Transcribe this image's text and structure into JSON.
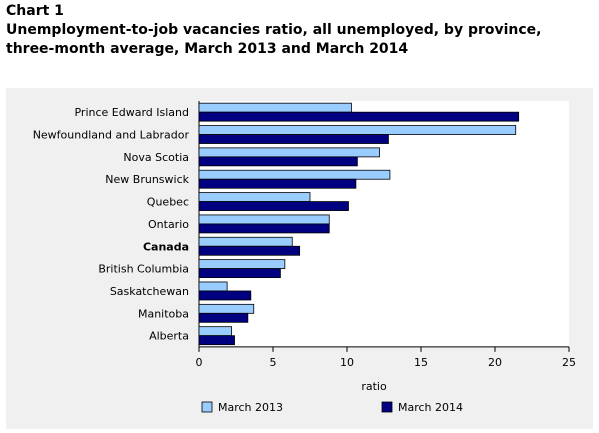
{
  "chart_label": "Chart 1",
  "chart_title": "Unemployment-to-job vacancies ratio, all unemployed, by province, three-month average, March 2013 and March 2014",
  "chart_data": {
    "type": "bar",
    "orientation": "horizontal",
    "categories": [
      "Prince Edward Island",
      "Newfoundland and Labrador",
      "Nova Scotia",
      "New Brunswick",
      "Quebec",
      "Ontario",
      "Canada",
      "British Columbia",
      "Saskatchewan",
      "Manitoba",
      "Alberta"
    ],
    "bold_categories": [
      "Canada"
    ],
    "series": [
      {
        "name": "March 2013",
        "color": "#99ccff",
        "values": [
          10.3,
          21.4,
          12.2,
          12.9,
          7.5,
          8.8,
          6.3,
          5.8,
          1.9,
          3.7,
          2.2
        ]
      },
      {
        "name": "March 2014",
        "color": "#000080",
        "values": [
          21.6,
          12.8,
          10.7,
          10.6,
          10.1,
          8.8,
          6.8,
          5.5,
          3.5,
          3.3,
          2.4
        ]
      }
    ],
    "xlabel": "ratio",
    "xlim": [
      0,
      25
    ],
    "xticks": [
      "0",
      "5",
      "10",
      "15",
      "20",
      "25"
    ],
    "legend_position": "bottom"
  }
}
